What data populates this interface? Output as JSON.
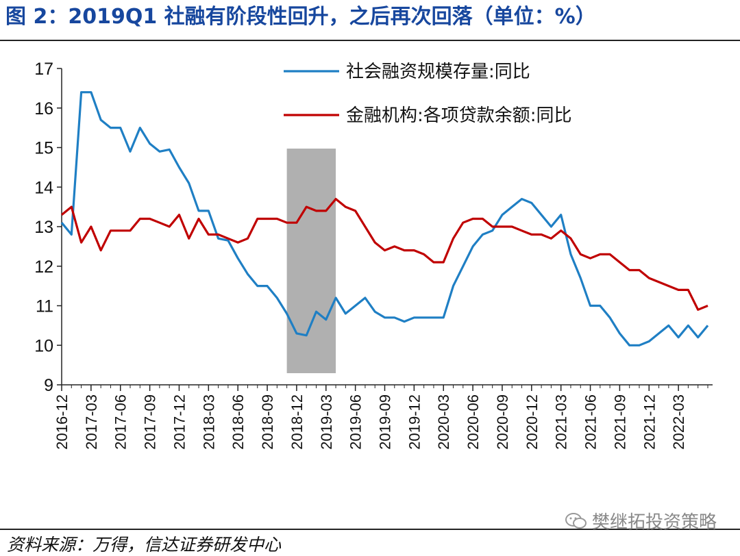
{
  "figure": {
    "title": "图 2：2019Q1 社融有阶段性回升，之后再次回落（单位：%）",
    "source": "资料来源：万得，信达证券研发中心",
    "watermark": "樊继拓投资策略"
  },
  "colors": {
    "title": "#17479e",
    "series1": "#1f7fc4",
    "series2": "#c00000",
    "shade": "#b0b0b0"
  },
  "chart_data": {
    "type": "line",
    "ylabel": "",
    "xlabel": "",
    "ylim": [
      9,
      17
    ],
    "yticks": [
      9,
      10,
      11,
      12,
      13,
      14,
      15,
      16,
      17
    ],
    "xticks": [
      "2016-12",
      "2017-03",
      "2017-06",
      "2017-09",
      "2017-12",
      "2018-03",
      "2018-06",
      "2018-09",
      "2018-12",
      "2019-03",
      "2019-06",
      "2019-09",
      "2019-12",
      "2020-03",
      "2020-06",
      "2020-09",
      "2020-12",
      "2021-03",
      "2021-06",
      "2021-09",
      "2021-12",
      "2022-03"
    ],
    "legend_position": "top-right",
    "grid": false,
    "shaded_region": {
      "from": "2018-11",
      "to": "2019-04"
    },
    "series": [
      {
        "name": "社会融资规模存量:同比",
        "color": "#1f7fc4",
        "points": [
          [
            "2016-12",
            13.1
          ],
          [
            "2017-01",
            12.8
          ],
          [
            "2017-02",
            16.4
          ],
          [
            "2017-03",
            16.4
          ],
          [
            "2017-04",
            15.7
          ],
          [
            "2017-05",
            15.5
          ],
          [
            "2017-06",
            15.5
          ],
          [
            "2017-07",
            14.9
          ],
          [
            "2017-08",
            15.5
          ],
          [
            "2017-09",
            15.1
          ],
          [
            "2017-10",
            14.9
          ],
          [
            "2017-11",
            14.95
          ],
          [
            "2017-12",
            14.5
          ],
          [
            "2018-01",
            14.1
          ],
          [
            "2018-02",
            13.4
          ],
          [
            "2018-03",
            13.4
          ],
          [
            "2018-04",
            12.7
          ],
          [
            "2018-05",
            12.65
          ],
          [
            "2018-06",
            12.2
          ],
          [
            "2018-07",
            11.8
          ],
          [
            "2018-08",
            11.5
          ],
          [
            "2018-09",
            11.5
          ],
          [
            "2018-10",
            11.2
          ],
          [
            "2018-11",
            10.8
          ],
          [
            "2018-12",
            10.3
          ],
          [
            "2019-01",
            10.25
          ],
          [
            "2019-02",
            10.85
          ],
          [
            "2019-03",
            10.65
          ],
          [
            "2019-04",
            11.2
          ],
          [
            "2019-05",
            10.8
          ],
          [
            "2019-06",
            11.0
          ],
          [
            "2019-07",
            11.2
          ],
          [
            "2019-08",
            10.85
          ],
          [
            "2019-09",
            10.7
          ],
          [
            "2019-10",
            10.7
          ],
          [
            "2019-11",
            10.6
          ],
          [
            "2019-12",
            10.7
          ],
          [
            "2020-01",
            10.7
          ],
          [
            "2020-02",
            10.7
          ],
          [
            "2020-03",
            10.7
          ],
          [
            "2020-04",
            11.5
          ],
          [
            "2020-05",
            12.0
          ],
          [
            "2020-06",
            12.5
          ],
          [
            "2020-07",
            12.8
          ],
          [
            "2020-08",
            12.9
          ],
          [
            "2020-09",
            13.3
          ],
          [
            "2020-10",
            13.5
          ],
          [
            "2020-11",
            13.7
          ],
          [
            "2020-12",
            13.6
          ],
          [
            "2021-01",
            13.3
          ],
          [
            "2021-02",
            13.0
          ],
          [
            "2021-03",
            13.3
          ],
          [
            "2021-04",
            12.3
          ],
          [
            "2021-05",
            11.7
          ],
          [
            "2021-06",
            11.0
          ],
          [
            "2021-07",
            11.0
          ],
          [
            "2021-08",
            10.7
          ],
          [
            "2021-09",
            10.3
          ],
          [
            "2021-10",
            10.0
          ],
          [
            "2021-11",
            10.0
          ],
          [
            "2021-12",
            10.1
          ],
          [
            "2022-01",
            10.3
          ],
          [
            "2022-02",
            10.5
          ],
          [
            "2022-03",
            10.2
          ],
          [
            "2022-04",
            10.5
          ],
          [
            "2022-05",
            10.2
          ],
          [
            "2022-06",
            10.5
          ]
        ]
      },
      {
        "name": "金融机构:各项贷款余额:同比",
        "color": "#c00000",
        "points": [
          [
            "2016-12",
            13.3
          ],
          [
            "2017-01",
            13.5
          ],
          [
            "2017-02",
            12.6
          ],
          [
            "2017-03",
            13.0
          ],
          [
            "2017-04",
            12.4
          ],
          [
            "2017-05",
            12.9
          ],
          [
            "2017-06",
            12.9
          ],
          [
            "2017-07",
            12.9
          ],
          [
            "2017-08",
            13.2
          ],
          [
            "2017-09",
            13.2
          ],
          [
            "2017-10",
            13.1
          ],
          [
            "2017-11",
            13.0
          ],
          [
            "2017-12",
            13.3
          ],
          [
            "2018-01",
            12.7
          ],
          [
            "2018-02",
            13.2
          ],
          [
            "2018-03",
            12.8
          ],
          [
            "2018-04",
            12.8
          ],
          [
            "2018-05",
            12.7
          ],
          [
            "2018-06",
            12.6
          ],
          [
            "2018-07",
            12.7
          ],
          [
            "2018-08",
            13.2
          ],
          [
            "2018-09",
            13.2
          ],
          [
            "2018-10",
            13.2
          ],
          [
            "2018-11",
            13.1
          ],
          [
            "2018-12",
            13.1
          ],
          [
            "2019-01",
            13.5
          ],
          [
            "2019-02",
            13.4
          ],
          [
            "2019-03",
            13.4
          ],
          [
            "2019-04",
            13.7
          ],
          [
            "2019-05",
            13.5
          ],
          [
            "2019-06",
            13.4
          ],
          [
            "2019-07",
            13.0
          ],
          [
            "2019-08",
            12.6
          ],
          [
            "2019-09",
            12.4
          ],
          [
            "2019-10",
            12.5
          ],
          [
            "2019-11",
            12.4
          ],
          [
            "2019-12",
            12.4
          ],
          [
            "2020-01",
            12.3
          ],
          [
            "2020-02",
            12.1
          ],
          [
            "2020-03",
            12.1
          ],
          [
            "2020-04",
            12.7
          ],
          [
            "2020-05",
            13.1
          ],
          [
            "2020-06",
            13.2
          ],
          [
            "2020-07",
            13.2
          ],
          [
            "2020-08",
            13.0
          ],
          [
            "2020-09",
            13.0
          ],
          [
            "2020-10",
            13.0
          ],
          [
            "2020-11",
            12.9
          ],
          [
            "2020-12",
            12.8
          ],
          [
            "2021-01",
            12.8
          ],
          [
            "2021-02",
            12.7
          ],
          [
            "2021-03",
            12.9
          ],
          [
            "2021-04",
            12.7
          ],
          [
            "2021-05",
            12.3
          ],
          [
            "2021-06",
            12.2
          ],
          [
            "2021-07",
            12.3
          ],
          [
            "2021-08",
            12.3
          ],
          [
            "2021-09",
            12.1
          ],
          [
            "2021-10",
            11.9
          ],
          [
            "2021-11",
            11.9
          ],
          [
            "2021-12",
            11.7
          ],
          [
            "2022-01",
            11.6
          ],
          [
            "2022-02",
            11.5
          ],
          [
            "2022-03",
            11.4
          ],
          [
            "2022-04",
            11.4
          ],
          [
            "2022-05",
            10.9
          ],
          [
            "2022-06",
            11.0
          ]
        ]
      }
    ]
  }
}
